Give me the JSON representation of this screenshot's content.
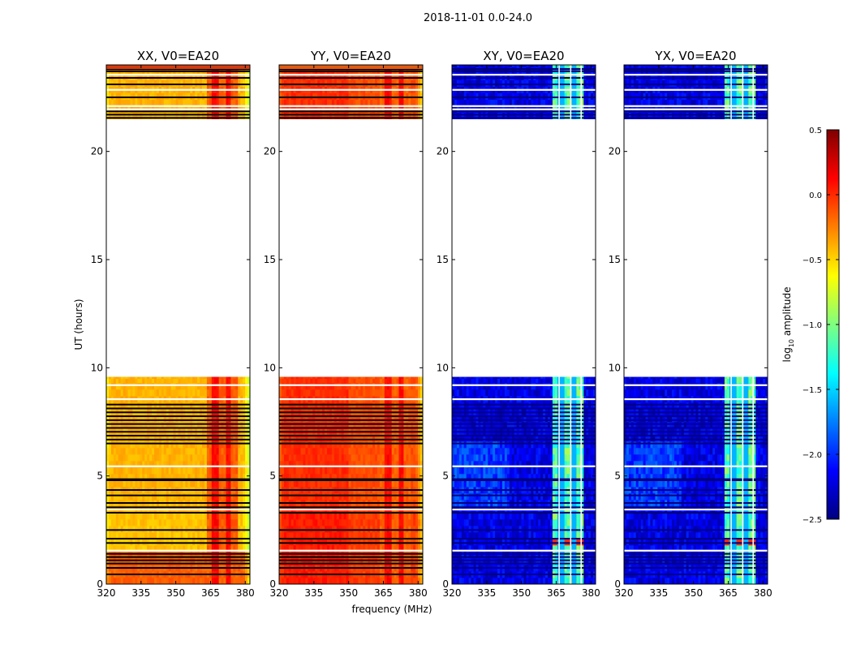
{
  "figure": {
    "suptitle": "2018-11-01 0.0-24.0",
    "xlabel": "frequency (MHz)",
    "ylabel": "UT (hours)"
  },
  "colorbar": {
    "label_main": "log",
    "label_sub": "10",
    "label_rest": " amplitude",
    "range": [
      -2.5,
      0.5
    ],
    "ticks": [
      0.5,
      0.0,
      -0.5,
      -1.0,
      -1.5,
      -2.0,
      -2.5
    ],
    "tick_labels": [
      "0.5",
      "0.0",
      "−0.5",
      "−1.0",
      "−1.5",
      "−2.0",
      "−2.5"
    ],
    "colormap": "jet",
    "colors": [
      "#00007f",
      "#0000ff",
      "#007fff",
      "#00ffff",
      "#7fff7f",
      "#ffff00",
      "#ff7f00",
      "#ff0000",
      "#7f0000"
    ]
  },
  "chart_data": {
    "type": "heatmap",
    "x_range": [
      320,
      382
    ],
    "y_range": [
      0,
      24
    ],
    "x_ticks": [
      320,
      335,
      350,
      365,
      380
    ],
    "y_ticks": [
      0,
      5,
      10,
      15,
      20
    ],
    "rfi_band_MHz": [
      363,
      377
    ],
    "data_gap_UT": [
      9.5,
      21.5
    ],
    "panels": [
      {
        "title": "XX, V0=EA20",
        "polarization": "XX",
        "typical_log10_amplitude": -0.4,
        "rfi_log10_amplitude": 0.1
      },
      {
        "title": "YY, V0=EA20",
        "polarization": "YY",
        "typical_log10_amplitude": -0.05,
        "rfi_log10_amplitude": 0.1
      },
      {
        "title": "XY, V0=EA20",
        "polarization": "XY",
        "typical_log10_amplitude": -2.2,
        "rfi_log10_amplitude": -1.0
      },
      {
        "title": "YX, V0=EA20",
        "polarization": "YX",
        "typical_log10_amplitude": -2.2,
        "rfi_log10_amplitude": -1.0
      }
    ]
  }
}
